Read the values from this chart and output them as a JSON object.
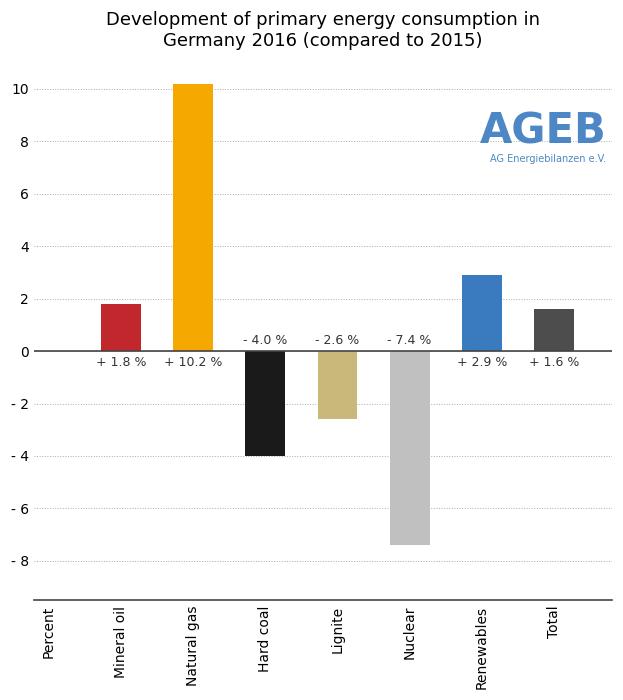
{
  "title": "Development of primary energy consumption in\nGermany 2016 (compared to 2015)",
  "categories": [
    "Mineral oil",
    "Natural gas",
    "Hard coal",
    "Lignite",
    "Nuclear",
    "Renewables",
    "Total"
  ],
  "values": [
    1.8,
    10.2,
    -4.0,
    -2.6,
    -7.4,
    2.9,
    1.6
  ],
  "bar_colors": [
    "#c0282e",
    "#f5a800",
    "#1a1a1a",
    "#c8b97a",
    "#c0c0c0",
    "#3a7abf",
    "#4d4d4d"
  ],
  "pos_labels": [
    "+ 1.8 %",
    "+ 10.2 %",
    "+ 2.9 %",
    "+ 1.6 %"
  ],
  "neg_labels": [
    "- 4.0 %",
    "- 2.6 %",
    "- 7.4 %"
  ],
  "all_labels": [
    "+ 1.8 %",
    "+ 10.2 %",
    "- 4.0 %",
    "- 2.6 %",
    "- 7.4 %",
    "+ 2.9 %",
    "+ 1.6 %"
  ],
  "ylabel_as_xlabel": "Percent",
  "ylim": [
    -9.5,
    11
  ],
  "yticks": [
    -8,
    -6,
    -4,
    -2,
    0,
    2,
    4,
    6,
    8,
    10
  ],
  "background_color": "#ffffff",
  "grid_color": "#aaaaaa",
  "ageb_main": "AGEB",
  "ageb_subtitle": "AG Energiebilanzen e.V.",
  "ageb_color": "#3a7abf",
  "title_fontsize": 13,
  "label_fontsize": 9,
  "tick_fontsize": 10,
  "bar_width": 0.55
}
